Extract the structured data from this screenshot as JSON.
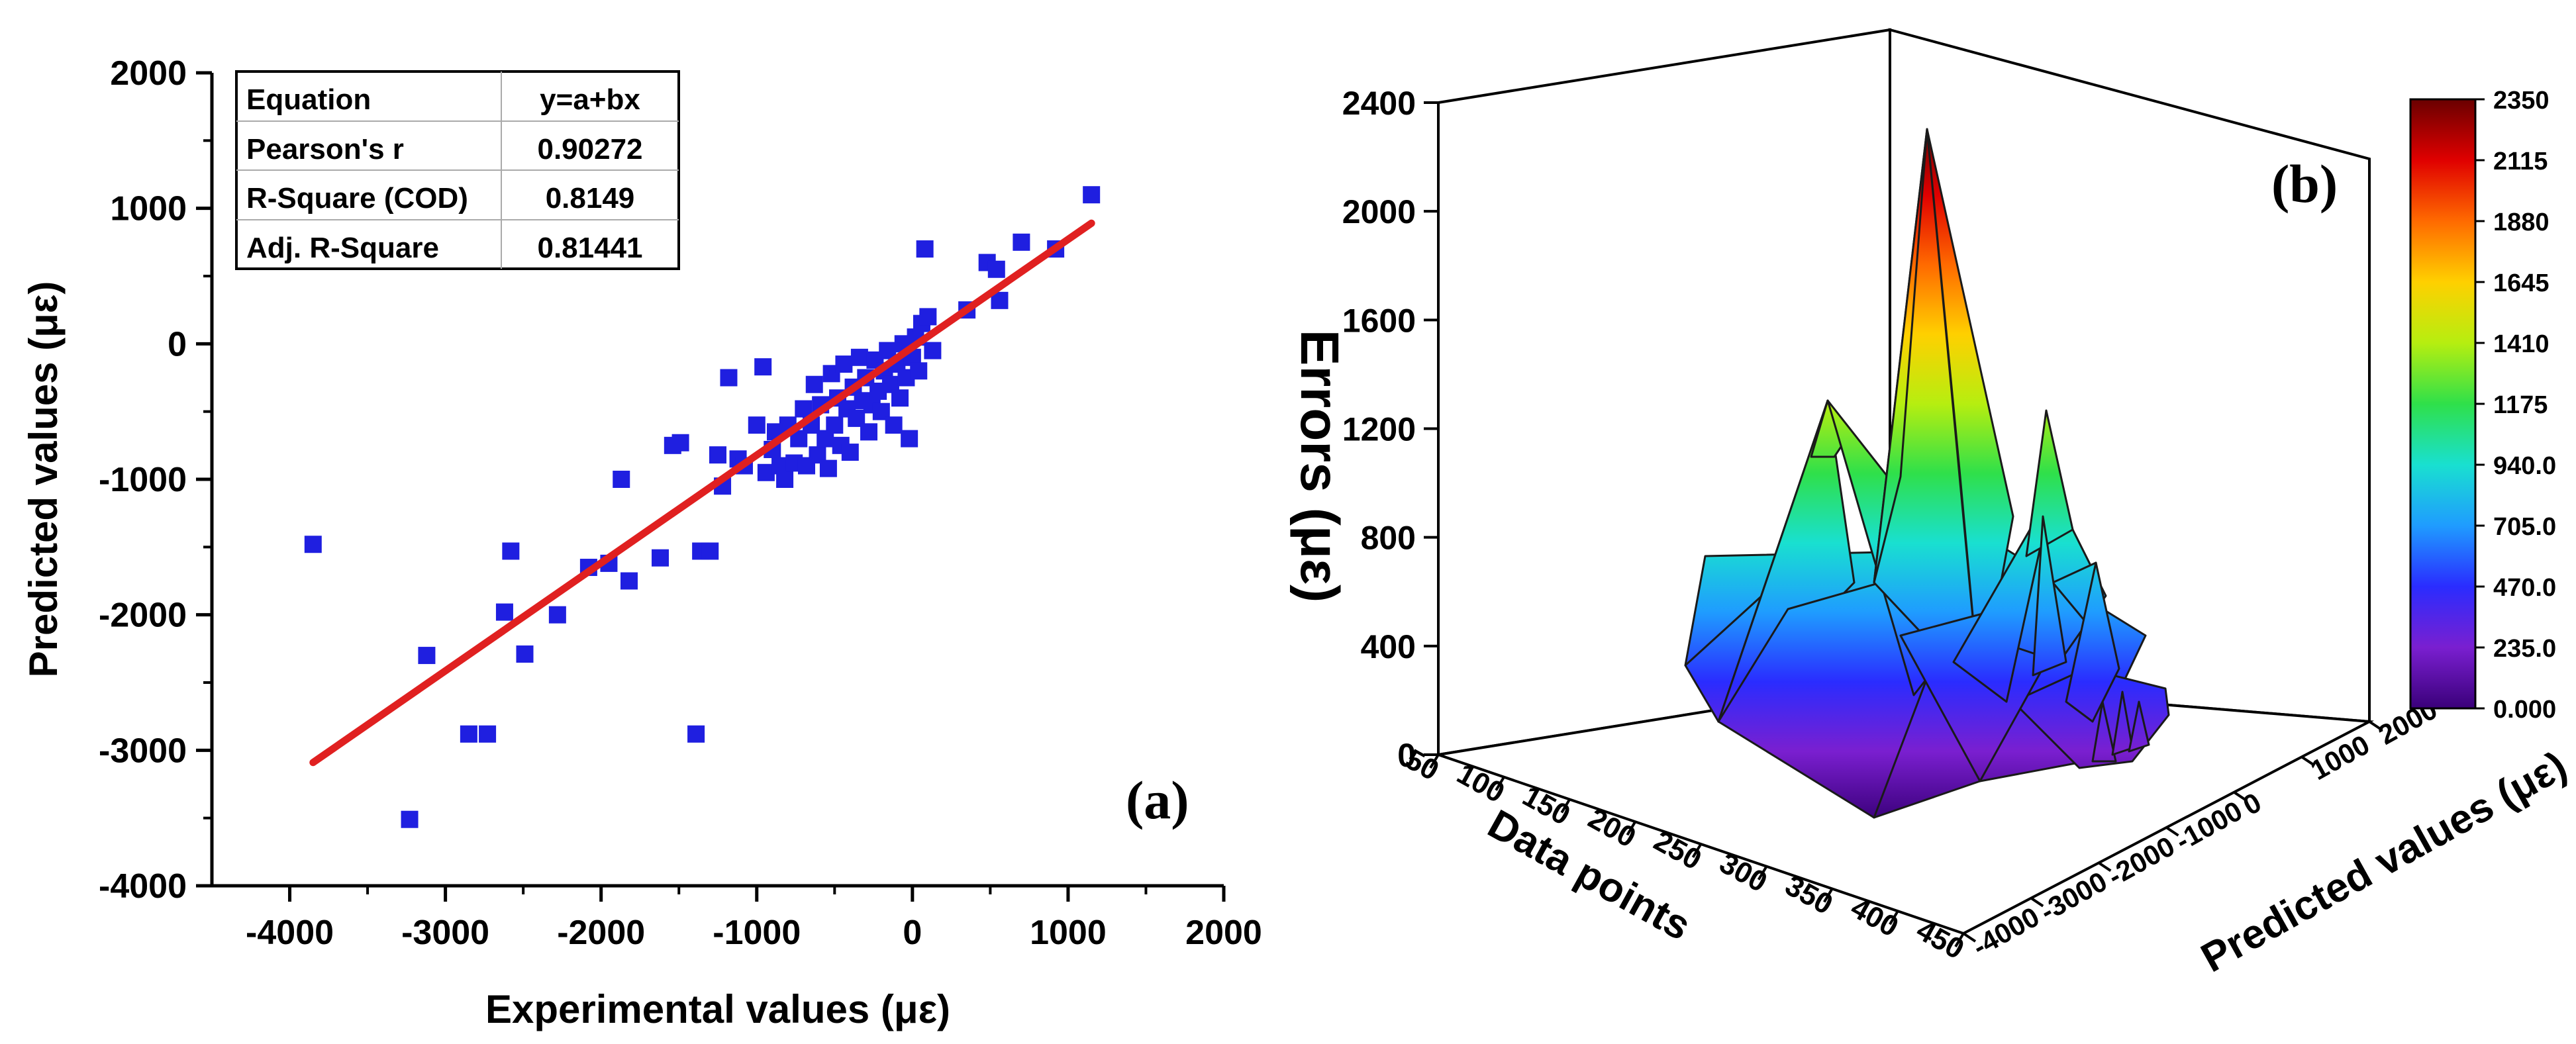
{
  "chart_data": [
    {
      "type": "scatter",
      "panel_label": "(a)",
      "xlabel": "Experimental values (με)",
      "ylabel": "Predicted values (με)",
      "xlim": [
        -4500,
        2000
      ],
      "ylim": [
        -4000,
        2000
      ],
      "x_ticks": [
        -4000,
        -3000,
        -2000,
        -1000,
        0,
        1000,
        2000
      ],
      "y_ticks": [
        -4000,
        -3000,
        -2000,
        -1000,
        0,
        1000,
        2000
      ],
      "point_color": "#1f1fe0",
      "fit_color": "#e02020",
      "fit_line": {
        "x": [
          -3850,
          1150
        ],
        "y": [
          -3090,
          890
        ]
      },
      "points": [
        [
          -3850,
          -1480
        ],
        [
          -3230,
          -3510
        ],
        [
          -3120,
          -2300
        ],
        [
          -2850,
          -2880
        ],
        [
          -2730,
          -2880
        ],
        [
          -2620,
          -1980
        ],
        [
          -2580,
          -1530
        ],
        [
          -2490,
          -2290
        ],
        [
          -2280,
          -2000
        ],
        [
          -2080,
          -1650
        ],
        [
          -1950,
          -1620
        ],
        [
          -1870,
          -1000
        ],
        [
          -1820,
          -1750
        ],
        [
          -1620,
          -1580
        ],
        [
          -1540,
          -750
        ],
        [
          -1490,
          -730
        ],
        [
          -1390,
          -2880
        ],
        [
          -1360,
          -1530
        ],
        [
          -1300,
          -1530
        ],
        [
          -1250,
          -820
        ],
        [
          -1220,
          -1050
        ],
        [
          -1180,
          -250
        ],
        [
          -1120,
          -850
        ],
        [
          -1080,
          -900
        ],
        [
          -1000,
          -600
        ],
        [
          -960,
          -170
        ],
        [
          -940,
          -950
        ],
        [
          -900,
          -780
        ],
        [
          -880,
          -650
        ],
        [
          -850,
          -900
        ],
        [
          -820,
          -1000
        ],
        [
          -800,
          -600
        ],
        [
          -760,
          -880
        ],
        [
          -730,
          -700
        ],
        [
          -700,
          -480
        ],
        [
          -680,
          -900
        ],
        [
          -650,
          -600
        ],
        [
          -630,
          -300
        ],
        [
          -610,
          -820
        ],
        [
          -590,
          -450
        ],
        [
          -560,
          -700
        ],
        [
          -540,
          -920
        ],
        [
          -520,
          -220
        ],
        [
          -500,
          -600
        ],
        [
          -480,
          -400
        ],
        [
          -460,
          -750
        ],
        [
          -440,
          -150
        ],
        [
          -420,
          -480
        ],
        [
          -400,
          -800
        ],
        [
          -380,
          -320
        ],
        [
          -360,
          -550
        ],
        [
          -340,
          -100
        ],
        [
          -320,
          -420
        ],
        [
          -300,
          -250
        ],
        [
          -280,
          -650
        ],
        [
          -260,
          -450
        ],
        [
          -240,
          -120
        ],
        [
          -220,
          -350
        ],
        [
          -200,
          -500
        ],
        [
          -180,
          -200
        ],
        [
          -160,
          -50
        ],
        [
          -140,
          -300
        ],
        [
          -120,
          -600
        ],
        [
          -100,
          -150
        ],
        [
          -80,
          -400
        ],
        [
          -60,
          0
        ],
        [
          -40,
          -250
        ],
        [
          -20,
          -700
        ],
        [
          0,
          -100
        ],
        [
          20,
          50
        ],
        [
          40,
          -200
        ],
        [
          60,
          150
        ],
        [
          80,
          700
        ],
        [
          100,
          200
        ],
        [
          130,
          -50
        ],
        [
          350,
          250
        ],
        [
          480,
          600
        ],
        [
          540,
          550
        ],
        [
          560,
          320
        ],
        [
          700,
          750
        ],
        [
          920,
          700
        ],
        [
          1150,
          1100
        ]
      ],
      "table": {
        "rows": [
          {
            "label": "Equation",
            "value": "y=a+bx"
          },
          {
            "label": "Pearson's r",
            "value": "0.90272"
          },
          {
            "label": "R-Square (COD)",
            "value": "0.8149"
          },
          {
            "label": "Adj. R-Square",
            "value": "0.81441"
          }
        ]
      }
    },
    {
      "type": "surface3d",
      "panel_label": "(b)",
      "zlabel": "Errors (με)",
      "xlabel": "Data points",
      "ylabel": "Predicted values (με)",
      "z_ticks": [
        0,
        400,
        800,
        1200,
        1600,
        2000,
        2400
      ],
      "x_ticks": [
        50,
        100,
        150,
        200,
        250,
        300,
        350,
        400,
        450
      ],
      "y_ticks": [
        -4000,
        -3000,
        -2000,
        -1000,
        0,
        1000,
        2000
      ],
      "surface_peaks": [
        {
          "data_point": 200,
          "predicted": -200,
          "error": 2350
        },
        {
          "data_point": 130,
          "predicted": -800,
          "error": 1330
        },
        {
          "data_point": 300,
          "predicted": 300,
          "error": 950
        },
        {
          "data_point": 380,
          "predicted": 500,
          "error": 700
        }
      ],
      "colorbar": {
        "min": 0,
        "max": 2350,
        "tick_labels": [
          "2350",
          "2115",
          "1880",
          "1645",
          "1410",
          "1175",
          "940.0",
          "705.0",
          "470.0",
          "235.0",
          "0.000"
        ]
      }
    }
  ]
}
